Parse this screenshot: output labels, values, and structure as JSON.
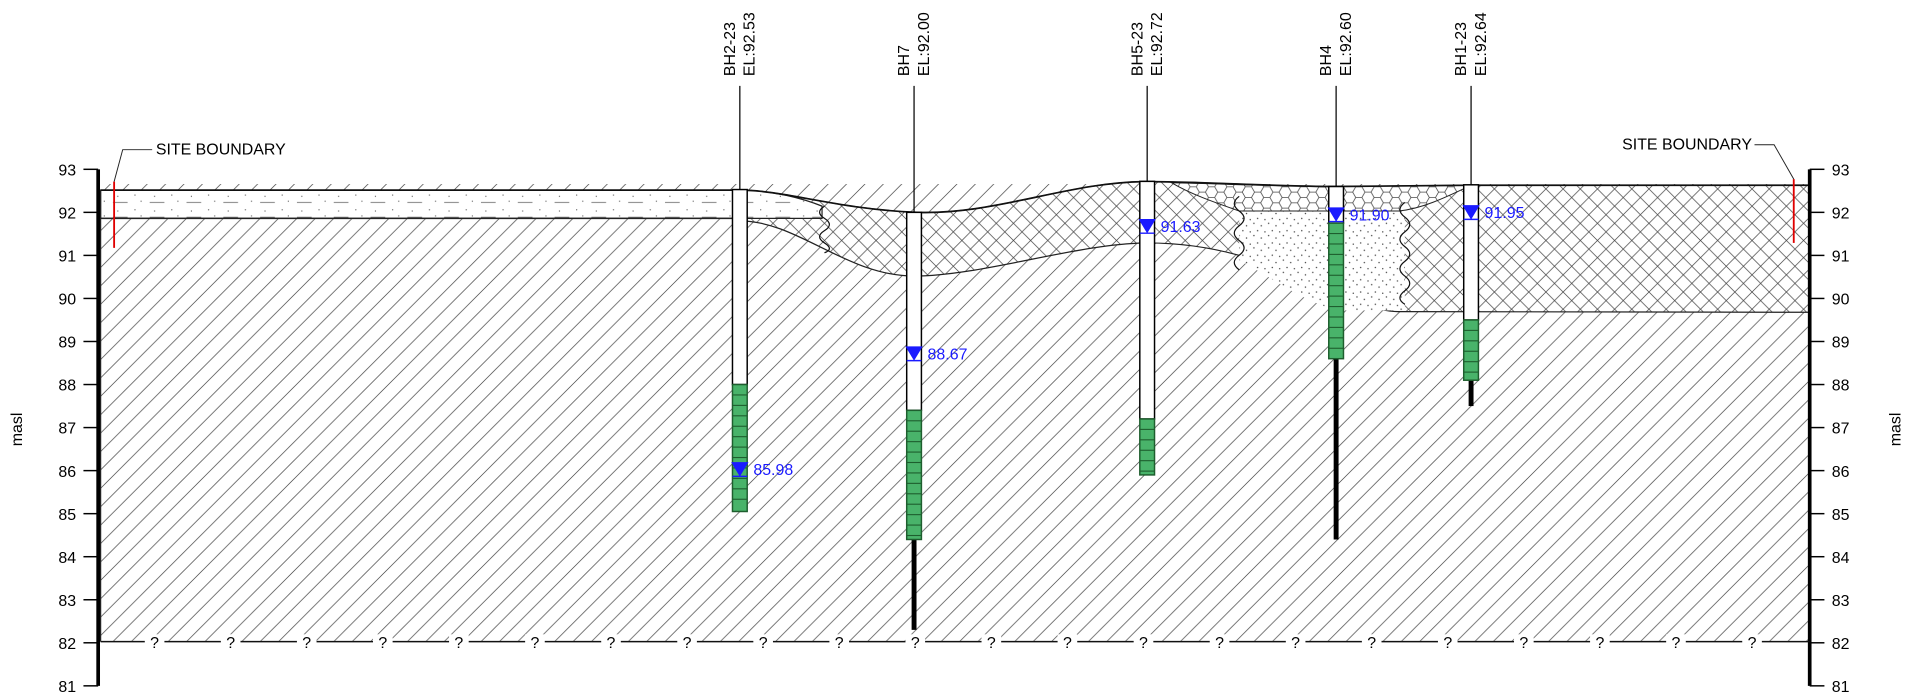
{
  "axis": {
    "label": "masl",
    "ylim": [
      81,
      93
    ],
    "yticks": [
      81,
      82,
      83,
      84,
      85,
      86,
      87,
      88,
      89,
      90,
      91,
      92,
      93
    ]
  },
  "site_boundary": {
    "left": "SITE BOUNDARY",
    "right": "SITE BOUNDARY"
  },
  "unknown_marker": "?",
  "boreholes": [
    {
      "name": "BH2-23",
      "elevation_label": "EL:92.53",
      "top": 92.53,
      "screen_top": 88.0,
      "screen_bottom": 85.05,
      "bottom": 85.05,
      "water_level": {
        "value": 85.98,
        "label": "85.98"
      }
    },
    {
      "name": "BH7",
      "elevation_label": "EL:92.00",
      "top": 92.0,
      "screen_top": 87.4,
      "screen_bottom": 84.4,
      "bottom": 82.3,
      "water_level": {
        "value": 88.67,
        "label": "88.67"
      }
    },
    {
      "name": "BH5-23",
      "elevation_label": "EL:92.72",
      "top": 92.72,
      "screen_top": 87.2,
      "screen_bottom": 85.9,
      "bottom": 85.9,
      "water_level": {
        "value": 91.63,
        "label": "91.63"
      }
    },
    {
      "name": "BH4",
      "elevation_label": "EL:92.60",
      "top": 92.6,
      "screen_top": 91.75,
      "screen_bottom": 88.6,
      "bottom": 84.4,
      "water_level": {
        "value": 91.9,
        "label": "91.90"
      }
    },
    {
      "name": "BH1-23",
      "elevation_label": "EL:92.64",
      "top": 92.64,
      "screen_top": 89.5,
      "screen_bottom": 88.1,
      "bottom": 87.5,
      "water_level": {
        "value": 91.95,
        "label": "91.95"
      }
    }
  ]
}
